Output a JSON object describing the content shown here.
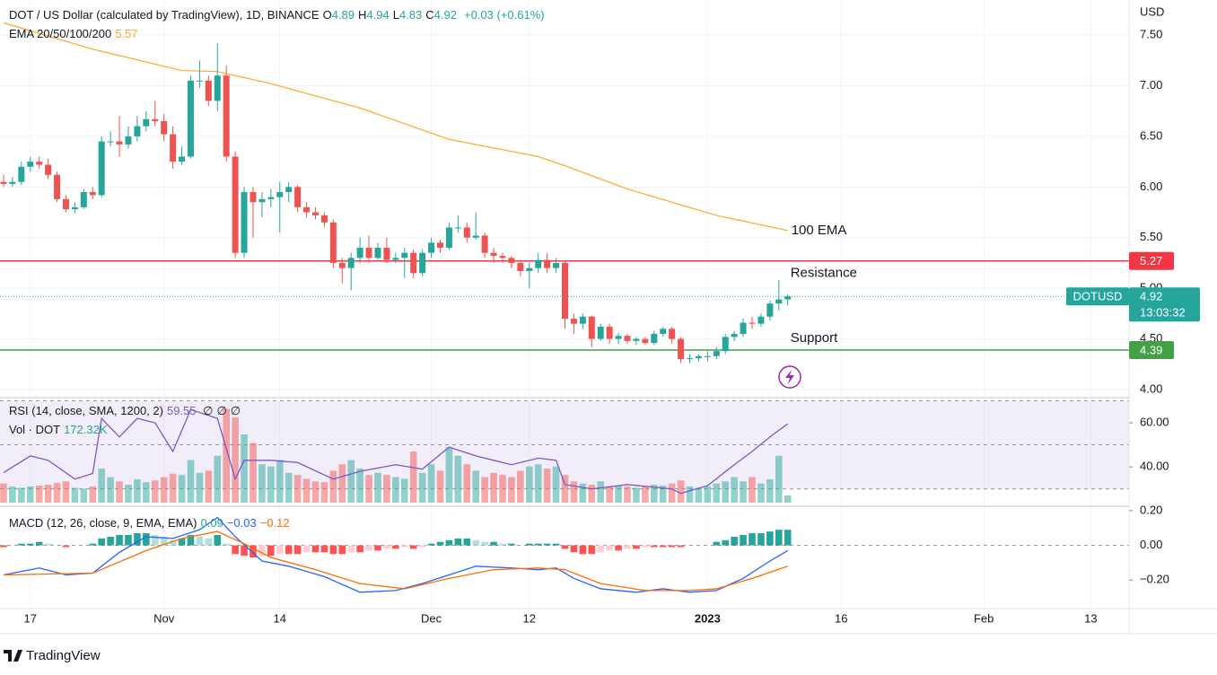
{
  "chart_data": {
    "type": "candlestick",
    "title": "DOT / US Dollar (calculated by TradingView), 1D, BINANCE",
    "ohlc_keys": [
      "O",
      "H",
      "L",
      "C"
    ],
    "change_label": "+0.03 (+0.61%)",
    "currency": "USD",
    "up_color": "#26a69a",
    "down_color": "#ef5350",
    "grid": true,
    "ylim": [
      3.947,
      7.846
    ],
    "yticks": [
      {
        "value": 4,
        "label": "4.00"
      },
      {
        "value": 4.5,
        "label": "4.50"
      },
      {
        "value": 5,
        "label": "5.00"
      },
      {
        "value": 5.5,
        "label": "5.50"
      },
      {
        "value": 6,
        "label": "6.00"
      },
      {
        "value": 6.5,
        "label": "6.50"
      },
      {
        "value": 7,
        "label": "7.00"
      },
      {
        "value": 7.5,
        "label": "7.50"
      }
    ],
    "xlim": [
      -0.4,
      126.3
    ],
    "xticks": [
      {
        "value": 3,
        "label": "17"
      },
      {
        "value": 18,
        "label": "Nov"
      },
      {
        "value": 31,
        "label": "14"
      },
      {
        "value": 48,
        "label": "Dec"
      },
      {
        "value": 59,
        "label": "12"
      },
      {
        "value": 79,
        "label": "2023"
      },
      {
        "value": 94,
        "label": "16"
      },
      {
        "value": 110,
        "label": "Feb"
      },
      {
        "value": 122,
        "label": "13"
      }
    ],
    "ohlc": [
      [
        6.05,
        6.12,
        6.0,
        6.03
      ],
      [
        6.03,
        6.1,
        6.0,
        6.05
      ],
      [
        6.05,
        6.25,
        6.02,
        6.2
      ],
      [
        6.2,
        6.3,
        6.15,
        6.25
      ],
      [
        6.25,
        6.3,
        6.18,
        6.22
      ],
      [
        6.22,
        6.28,
        6.08,
        6.12
      ],
      [
        6.12,
        6.15,
        5.85,
        5.88
      ],
      [
        5.88,
        5.92,
        5.75,
        5.78
      ],
      [
        5.78,
        5.85,
        5.74,
        5.8
      ],
      [
        5.8,
        5.98,
        5.78,
        5.95
      ],
      [
        5.95,
        6.0,
        5.88,
        5.92
      ],
      [
        5.92,
        6.5,
        5.9,
        6.45
      ],
      [
        6.45,
        6.55,
        6.4,
        6.45
      ],
      [
        6.45,
        6.7,
        6.3,
        6.42
      ],
      [
        6.42,
        6.6,
        6.38,
        6.5
      ],
      [
        6.5,
        6.7,
        6.45,
        6.6
      ],
      [
        6.6,
        6.75,
        6.55,
        6.67
      ],
      [
        6.67,
        6.85,
        6.6,
        6.65
      ],
      [
        6.65,
        6.72,
        6.45,
        6.52
      ],
      [
        6.52,
        6.6,
        6.18,
        6.25
      ],
      [
        6.25,
        6.4,
        6.22,
        6.3
      ],
      [
        6.3,
        7.1,
        6.28,
        7.05
      ],
      [
        7.05,
        7.25,
        6.98,
        7.05
      ],
      [
        7.05,
        7.1,
        6.8,
        6.85
      ],
      [
        6.85,
        7.42,
        6.75,
        7.1
      ],
      [
        7.1,
        7.2,
        6.25,
        6.3
      ],
      [
        6.3,
        6.35,
        5.3,
        5.35
      ],
      [
        5.35,
        6.0,
        5.3,
        5.95
      ],
      [
        5.95,
        6.0,
        5.5,
        5.85
      ],
      [
        5.85,
        5.95,
        5.7,
        5.88
      ],
      [
        5.88,
        5.98,
        5.8,
        5.9
      ],
      [
        5.9,
        6.05,
        5.55,
        5.95
      ],
      [
        5.95,
        6.05,
        5.85,
        6.0
      ],
      [
        6.0,
        6.02,
        5.75,
        5.8
      ],
      [
        5.8,
        5.85,
        5.7,
        5.75
      ],
      [
        5.75,
        5.8,
        5.68,
        5.72
      ],
      [
        5.72,
        5.75,
        5.6,
        5.65
      ],
      [
        5.65,
        5.68,
        5.2,
        5.25
      ],
      [
        5.25,
        5.3,
        5.05,
        5.2
      ],
      [
        5.2,
        5.35,
        4.98,
        5.3
      ],
      [
        5.3,
        5.5,
        5.25,
        5.4
      ],
      [
        5.4,
        5.52,
        5.25,
        5.3
      ],
      [
        5.3,
        5.45,
        5.28,
        5.4
      ],
      [
        5.4,
        5.5,
        5.25,
        5.28
      ],
      [
        5.28,
        5.35,
        5.25,
        5.3
      ],
      [
        5.3,
        5.4,
        5.1,
        5.35
      ],
      [
        5.35,
        5.38,
        5.1,
        5.15
      ],
      [
        5.15,
        5.38,
        5.12,
        5.35
      ],
      [
        5.35,
        5.5,
        5.3,
        5.45
      ],
      [
        5.45,
        5.48,
        5.35,
        5.4
      ],
      [
        5.4,
        5.65,
        5.38,
        5.6
      ],
      [
        5.6,
        5.72,
        5.55,
        5.6
      ],
      [
        5.6,
        5.65,
        5.45,
        5.5
      ],
      [
        5.5,
        5.75,
        5.48,
        5.52
      ],
      [
        5.52,
        5.55,
        5.3,
        5.35
      ],
      [
        5.35,
        5.4,
        5.25,
        5.32
      ],
      [
        5.32,
        5.35,
        5.25,
        5.3
      ],
      [
        5.3,
        5.32,
        5.2,
        5.25
      ],
      [
        5.25,
        5.28,
        5.12,
        5.17
      ],
      [
        5.17,
        5.25,
        5.0,
        5.2
      ],
      [
        5.2,
        5.35,
        5.15,
        5.28
      ],
      [
        5.28,
        5.35,
        5.15,
        5.2
      ],
      [
        5.2,
        5.3,
        5.15,
        5.25
      ],
      [
        5.25,
        5.27,
        4.6,
        4.7
      ],
      [
        4.7,
        4.75,
        4.55,
        4.65
      ],
      [
        4.65,
        4.75,
        4.6,
        4.72
      ],
      [
        4.72,
        4.73,
        4.42,
        4.5
      ],
      [
        4.5,
        4.65,
        4.48,
        4.62
      ],
      [
        4.62,
        4.65,
        4.45,
        4.5
      ],
      [
        4.5,
        4.56,
        4.45,
        4.53
      ],
      [
        4.53,
        4.55,
        4.45,
        4.48
      ],
      [
        4.48,
        4.52,
        4.44,
        4.5
      ],
      [
        4.5,
        4.52,
        4.44,
        4.46
      ],
      [
        4.46,
        4.58,
        4.44,
        4.55
      ],
      [
        4.55,
        4.62,
        4.52,
        4.6
      ],
      [
        4.6,
        4.62,
        4.45,
        4.5
      ],
      [
        4.5,
        4.52,
        4.26,
        4.3
      ],
      [
        4.3,
        4.35,
        4.26,
        4.31
      ],
      [
        4.31,
        4.35,
        4.28,
        4.33
      ],
      [
        4.33,
        4.38,
        4.28,
        4.33
      ],
      [
        4.33,
        4.42,
        4.3,
        4.38
      ],
      [
        4.38,
        4.55,
        4.35,
        4.52
      ],
      [
        4.52,
        4.58,
        4.48,
        4.55
      ],
      [
        4.55,
        4.7,
        4.52,
        4.66
      ],
      [
        4.66,
        4.72,
        4.6,
        4.65
      ],
      [
        4.65,
        4.75,
        4.62,
        4.72
      ],
      [
        4.72,
        4.88,
        4.68,
        4.85
      ],
      [
        4.85,
        5.08,
        4.78,
        4.89
      ],
      [
        4.89,
        4.94,
        4.83,
        4.92
      ]
    ],
    "ema": {
      "name": "EMA 20/50/100/200",
      "annotation": "100 EMA",
      "color": "#ffa726",
      "x": [
        0,
        10,
        20,
        24,
        30,
        40,
        50,
        60,
        63,
        70,
        80,
        88
      ],
      "values": [
        7.62,
        7.36,
        7.15,
        7.14,
        7.02,
        6.78,
        6.47,
        6.3,
        6.21,
        5.98,
        5.72,
        5.57
      ]
    },
    "levels": [
      {
        "name": "Resistance",
        "value": 5.27,
        "color": "#f23645"
      },
      {
        "name": "Support",
        "value": 4.39,
        "color": "#43a047"
      }
    ],
    "last": {
      "symbol": "DOTUSD",
      "countdown": "13:03:32",
      "color": "#26a69a"
    },
    "rsi": {
      "name": "RSI (14, close, SMA, 1200, 2)",
      "na": [
        "∅",
        "∅",
        "∅"
      ],
      "color": "#7e57c2",
      "ylim": [
        22.98,
        70.6
      ],
      "yticks": [
        {
          "value": 40,
          "label": "40.00"
        },
        {
          "value": 60,
          "label": "60.00"
        }
      ],
      "band": [
        30,
        70
      ],
      "midline": 50,
      "x": [
        0,
        3,
        5,
        8,
        10,
        11,
        13,
        15,
        17,
        19,
        21,
        24,
        26,
        27,
        30,
        33,
        37,
        40,
        44,
        47,
        50,
        53,
        55,
        57,
        60,
        62,
        63,
        66,
        70,
        75,
        76,
        79,
        82,
        84,
        86,
        88
      ],
      "values": [
        37.4,
        45,
        43,
        34.5,
        37,
        62,
        53.6,
        62,
        60,
        47,
        66,
        62,
        34.5,
        43,
        43,
        42,
        34.5,
        38,
        41,
        39,
        49,
        45,
        43,
        41,
        44,
        43,
        32,
        30,
        32,
        30,
        28,
        31.5,
        41,
        47,
        53.6,
        59.55
      ]
    },
    "volume": {
      "name": "Vol · DOT",
      "value_label": "172.32K",
      "ylim": [
        0,
        2400
      ],
      "values": [
        450,
        380,
        350,
        380,
        400,
        420,
        460,
        500,
        350,
        330,
        380,
        800,
        600,
        500,
        420,
        550,
        480,
        520,
        600,
        680,
        650,
        1000,
        700,
        750,
        1100,
        2200,
        2000,
        1600,
        1400,
        900,
        850,
        1000,
        700,
        650,
        560,
        500,
        480,
        750,
        900,
        1000,
        800,
        650,
        700,
        650,
        600,
        560,
        1200,
        700,
        900,
        750,
        1300,
        1100,
        900,
        750,
        600,
        700,
        650,
        600,
        750,
        850,
        900,
        800,
        850,
        650,
        500,
        450,
        420,
        500,
        380,
        400,
        380,
        350,
        380,
        420,
        400,
        450,
        520,
        380,
        350,
        380,
        450,
        500,
        600,
        500,
        600,
        450,
        550,
        1100,
        172.32
      ]
    },
    "macd": {
      "name": "MACD (12, 26, close, 9, EMA, EMA)",
      "histogram_label": "0.09",
      "macd_label": "−0.03",
      "signal_label": "−0.12",
      "macd_color": "#2962ff",
      "signal_color": "#ff6d00",
      "ylim": [
        -0.364,
        0.215
      ],
      "yticks": [
        {
          "value": -0.2,
          "label": "−0.20"
        },
        {
          "value": 0,
          "label": "0.00"
        },
        {
          "value": 0.2,
          "label": "0.20"
        }
      ],
      "macd_x": [
        0,
        4,
        7,
        10,
        13,
        16,
        19,
        22,
        24,
        26,
        29,
        32,
        36,
        40,
        44,
        47,
        50,
        53,
        57,
        60,
        62,
        64,
        67,
        71,
        74,
        77,
        80,
        83,
        86,
        88
      ],
      "macd_values": [
        -0.17,
        -0.13,
        -0.17,
        -0.16,
        -0.04,
        0.05,
        0.04,
        0.09,
        0.16,
        0.05,
        -0.09,
        -0.12,
        -0.18,
        -0.27,
        -0.26,
        -0.22,
        -0.17,
        -0.12,
        -0.13,
        -0.14,
        -0.13,
        -0.19,
        -0.25,
        -0.27,
        -0.25,
        -0.27,
        -0.26,
        -0.19,
        -0.09,
        -0.03
      ],
      "signal_x": [
        0,
        10,
        16,
        20,
        24,
        27,
        30,
        35,
        40,
        45,
        50,
        55,
        60,
        63,
        67,
        72,
        77,
        80,
        84,
        88
      ],
      "signal_values": [
        -0.17,
        -0.16,
        -0.03,
        0.04,
        0.08,
        0.01,
        -0.07,
        -0.14,
        -0.22,
        -0.25,
        -0.19,
        -0.14,
        -0.13,
        -0.14,
        -0.22,
        -0.26,
        -0.26,
        -0.25,
        -0.19,
        -0.12
      ],
      "histogram": [
        -0.01,
        0,
        0.01,
        0.01,
        0.02,
        0.01,
        0,
        -0.01,
        0,
        0,
        0.01,
        0.04,
        0.05,
        0.06,
        0.06,
        0.07,
        0.07,
        0.06,
        0.05,
        0.03,
        0.04,
        0.06,
        0.05,
        0.04,
        0.06,
        0.01,
        -0.05,
        -0.06,
        -0.07,
        -0.06,
        -0.06,
        -0.05,
        -0.05,
        -0.05,
        -0.04,
        -0.04,
        -0.04,
        -0.05,
        -0.05,
        -0.04,
        -0.04,
        -0.03,
        -0.03,
        -0.02,
        -0.02,
        -0.01,
        -0.02,
        -0.01,
        0.01,
        0.02,
        0.03,
        0.04,
        0.04,
        0.03,
        0.02,
        0.02,
        0.01,
        0.01,
        0,
        0.01,
        0.01,
        0.01,
        0.01,
        -0.02,
        -0.04,
        -0.05,
        -0.05,
        -0.04,
        -0.03,
        -0.03,
        -0.02,
        -0.02,
        -0.01,
        -0.01,
        -0.01,
        -0.01,
        -0.01,
        0,
        0,
        0,
        0.02,
        0.03,
        0.05,
        0.06,
        0.07,
        0.07,
        0.08,
        0.09,
        0.09
      ]
    },
    "footer": "TradingView"
  }
}
